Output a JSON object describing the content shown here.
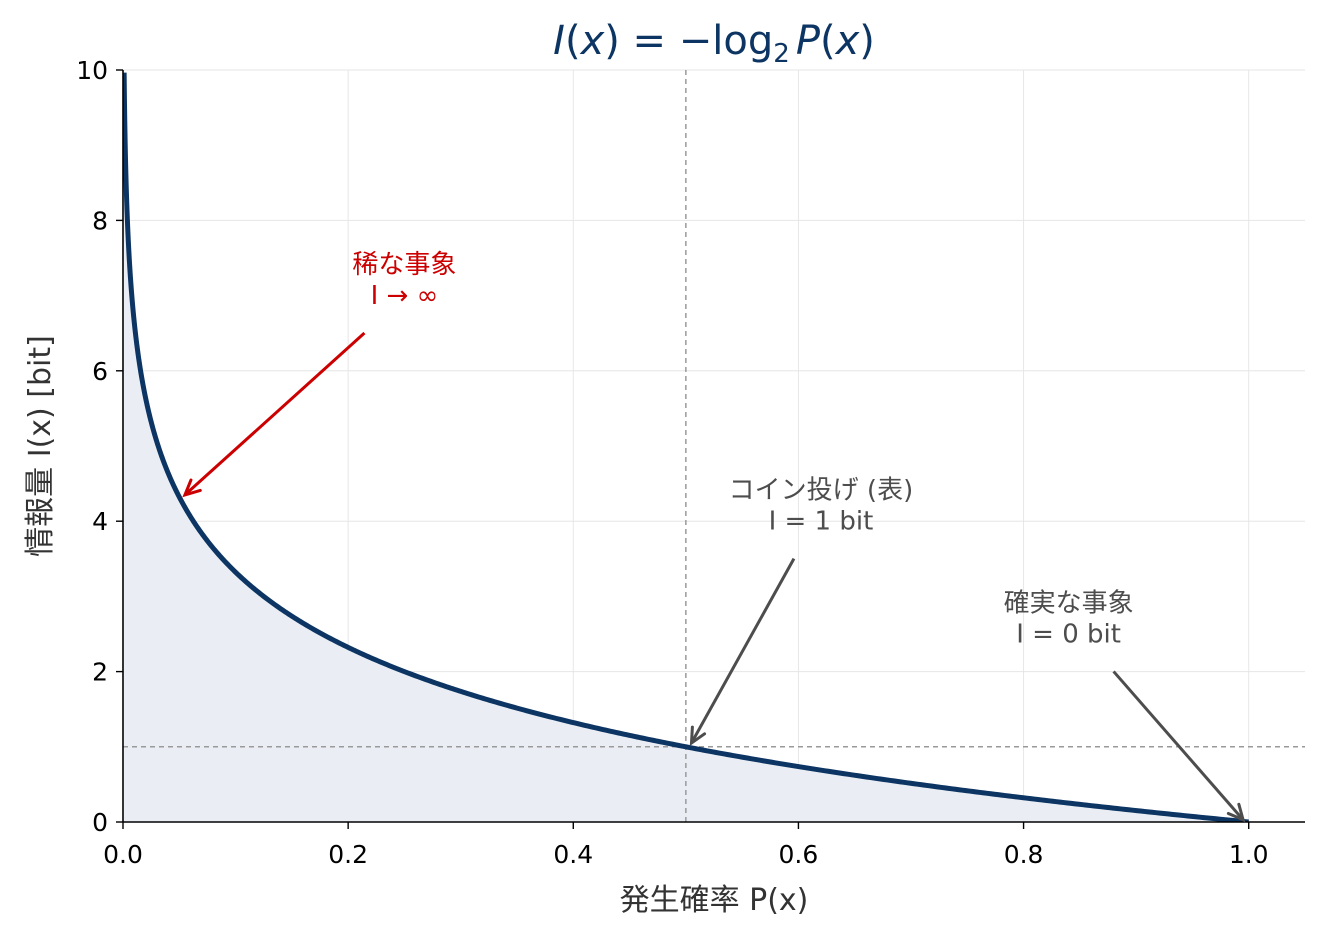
{
  "chart_data": {
    "type": "line",
    "title": "I(x) = −log₂ P(x)",
    "title_parts": {
      "lhs_var": "I",
      "open": "(",
      "x1": "x",
      "close": ")",
      "eq": " = −log",
      "sub": "2",
      "p_var": "P",
      "x2": "x"
    },
    "xlabel": "発生確率 P(x)",
    "ylabel": "情報量 I(x)  [bit]",
    "xlim": [
      0.0,
      1.05
    ],
    "ylim": [
      0,
      10
    ],
    "x_ticks": [
      "0.0",
      "0.2",
      "0.4",
      "0.6",
      "0.8",
      "1.0"
    ],
    "x_tick_values": [
      0.0,
      0.2,
      0.4,
      0.6,
      0.8,
      1.0
    ],
    "y_ticks": [
      "0",
      "2",
      "4",
      "6",
      "8",
      "10"
    ],
    "y_tick_values": [
      0,
      2,
      4,
      6,
      8,
      10
    ],
    "grid": true,
    "series": [
      {
        "function": "-log2(x)",
        "x_min": 0.001,
        "x_max": 1.0,
        "color": "#0d3563",
        "fill": "#eaeef4"
      }
    ],
    "reference_lines": [
      {
        "orientation": "vertical",
        "value": 0.5
      },
      {
        "orientation": "horizontal",
        "value": 1
      }
    ],
    "annotations": [
      {
        "lines": [
          "稀な事象",
          "I → ∞"
        ],
        "text_at": [
          0.25,
          7.3
        ],
        "point": [
          0.055,
          4.35
        ],
        "color": "#cc0000"
      },
      {
        "lines": [
          "コイン投げ (表)",
          "I = 1 bit"
        ],
        "text_at": [
          0.62,
          4.3
        ],
        "point": [
          0.505,
          1.05
        ],
        "color": "#4d4d4d"
      },
      {
        "lines": [
          "確実な事象",
          "I = 0 bit"
        ],
        "text_at": [
          0.84,
          2.8
        ],
        "point": [
          0.995,
          0.03
        ],
        "color": "#4d4d4d"
      }
    ]
  }
}
